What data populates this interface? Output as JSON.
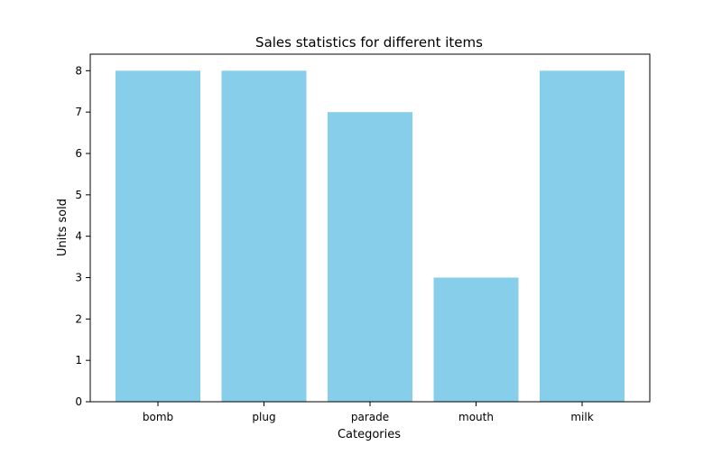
{
  "chart_data": {
    "type": "bar",
    "title": "Sales statistics for different items",
    "xlabel": "Categories",
    "ylabel": "Units sold",
    "categories": [
      "bomb",
      "plug",
      "parade",
      "mouth",
      "milk"
    ],
    "values": [
      8,
      8,
      7,
      3,
      8
    ],
    "ylim": [
      0,
      8.4
    ],
    "yticks": [
      0,
      1,
      2,
      3,
      4,
      5,
      6,
      7,
      8
    ],
    "bar_color": "#87CEEB",
    "grid": false,
    "legend": "none"
  }
}
